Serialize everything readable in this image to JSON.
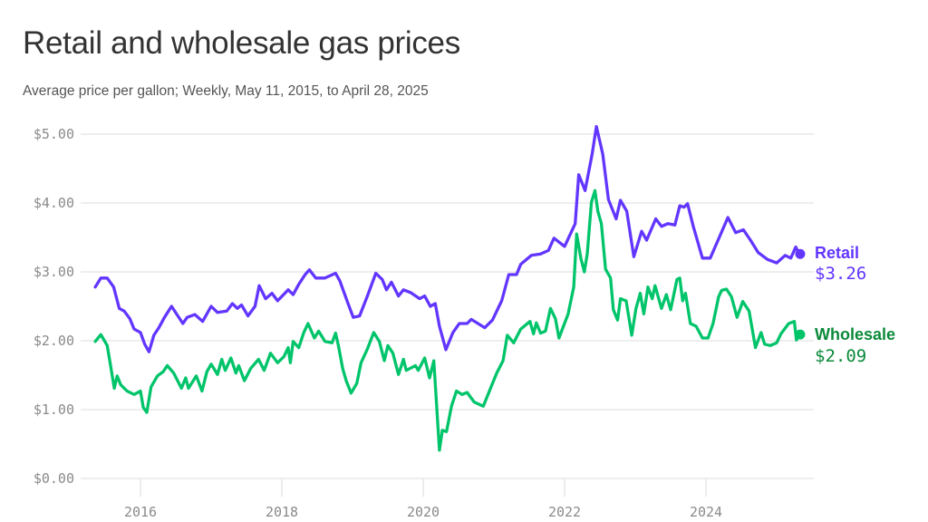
{
  "title": "Retail and wholesale gas prices",
  "subtitle": "Average price per gallon; Weekly, May 11, 2015, to April 28, 2025",
  "chart_data": {
    "type": "line",
    "title": "Retail and wholesale gas prices",
    "subtitle": "Average price per gallon; Weekly, May 11, 2015, to April 28, 2025",
    "x_unit": "year",
    "xlim": [
      2015.36,
      2025.32
    ],
    "ylim": [
      0,
      5
    ],
    "x_ticks": [
      2016,
      2018,
      2020,
      2022,
      2024
    ],
    "x_tick_labels": [
      "2016",
      "2018",
      "2020",
      "2022",
      "2024"
    ],
    "y_ticks": [
      0,
      1,
      2,
      3,
      4,
      5
    ],
    "y_tick_labels": [
      "$0.00",
      "$1.00",
      "$2.00",
      "$3.00",
      "$4.00",
      "$5.00"
    ],
    "grid": "horizontal",
    "legend": "direct labels at line ends (right)",
    "series": [
      {
        "name": "Retail",
        "end_label": "$3.26",
        "color": "#6236ff",
        "label_color": "#6236ff",
        "points": [
          [
            2015.36,
            2.78
          ],
          [
            2015.44,
            2.91
          ],
          [
            2015.53,
            2.91
          ],
          [
            2015.62,
            2.78
          ],
          [
            2015.7,
            2.47
          ],
          [
            2015.77,
            2.43
          ],
          [
            2015.85,
            2.32
          ],
          [
            2015.91,
            2.17
          ],
          [
            2016.0,
            2.12
          ],
          [
            2016.06,
            1.95
          ],
          [
            2016.12,
            1.84
          ],
          [
            2016.19,
            2.08
          ],
          [
            2016.26,
            2.19
          ],
          [
            2016.34,
            2.34
          ],
          [
            2016.44,
            2.5
          ],
          [
            2016.51,
            2.39
          ],
          [
            2016.6,
            2.25
          ],
          [
            2016.66,
            2.34
          ],
          [
            2016.77,
            2.38
          ],
          [
            2016.88,
            2.28
          ],
          [
            2017.0,
            2.5
          ],
          [
            2017.09,
            2.41
          ],
          [
            2017.22,
            2.43
          ],
          [
            2017.3,
            2.54
          ],
          [
            2017.37,
            2.47
          ],
          [
            2017.43,
            2.52
          ],
          [
            2017.52,
            2.36
          ],
          [
            2017.62,
            2.5
          ],
          [
            2017.68,
            2.8
          ],
          [
            2017.77,
            2.61
          ],
          [
            2017.86,
            2.69
          ],
          [
            2017.94,
            2.58
          ],
          [
            2018.09,
            2.74
          ],
          [
            2018.16,
            2.67
          ],
          [
            2018.24,
            2.82
          ],
          [
            2018.33,
            2.96
          ],
          [
            2018.39,
            3.03
          ],
          [
            2018.48,
            2.91
          ],
          [
            2018.61,
            2.91
          ],
          [
            2018.76,
            2.98
          ],
          [
            2018.82,
            2.87
          ],
          [
            2018.93,
            2.56
          ],
          [
            2019.01,
            2.34
          ],
          [
            2019.1,
            2.36
          ],
          [
            2019.21,
            2.65
          ],
          [
            2019.33,
            2.98
          ],
          [
            2019.42,
            2.89
          ],
          [
            2019.48,
            2.74
          ],
          [
            2019.55,
            2.85
          ],
          [
            2019.65,
            2.65
          ],
          [
            2019.72,
            2.74
          ],
          [
            2019.82,
            2.7
          ],
          [
            2019.95,
            2.61
          ],
          [
            2020.02,
            2.65
          ],
          [
            2020.1,
            2.5
          ],
          [
            2020.17,
            2.54
          ],
          [
            2020.23,
            2.21
          ],
          [
            2020.32,
            1.87
          ],
          [
            2020.42,
            2.12
          ],
          [
            2020.51,
            2.25
          ],
          [
            2020.62,
            2.25
          ],
          [
            2020.68,
            2.31
          ],
          [
            2020.87,
            2.19
          ],
          [
            2020.98,
            2.3
          ],
          [
            2021.11,
            2.58
          ],
          [
            2021.21,
            2.96
          ],
          [
            2021.32,
            2.96
          ],
          [
            2021.38,
            3.11
          ],
          [
            2021.53,
            3.24
          ],
          [
            2021.66,
            3.26
          ],
          [
            2021.77,
            3.31
          ],
          [
            2021.85,
            3.49
          ],
          [
            2022.0,
            3.37
          ],
          [
            2022.15,
            3.7
          ],
          [
            2022.2,
            4.41
          ],
          [
            2022.29,
            4.18
          ],
          [
            2022.39,
            4.71
          ],
          [
            2022.45,
            5.11
          ],
          [
            2022.54,
            4.71
          ],
          [
            2022.62,
            4.05
          ],
          [
            2022.73,
            3.77
          ],
          [
            2022.79,
            4.04
          ],
          [
            2022.88,
            3.88
          ],
          [
            2022.98,
            3.22
          ],
          [
            2023.09,
            3.59
          ],
          [
            2023.16,
            3.46
          ],
          [
            2023.29,
            3.77
          ],
          [
            2023.37,
            3.66
          ],
          [
            2023.46,
            3.7
          ],
          [
            2023.56,
            3.68
          ],
          [
            2023.63,
            3.96
          ],
          [
            2023.69,
            3.94
          ],
          [
            2023.74,
            3.99
          ],
          [
            2023.82,
            3.66
          ],
          [
            2023.95,
            3.2
          ],
          [
            2024.06,
            3.2
          ],
          [
            2024.18,
            3.48
          ],
          [
            2024.31,
            3.79
          ],
          [
            2024.42,
            3.57
          ],
          [
            2024.53,
            3.61
          ],
          [
            2024.63,
            3.46
          ],
          [
            2024.74,
            3.28
          ],
          [
            2024.87,
            3.18
          ],
          [
            2025.0,
            3.13
          ],
          [
            2025.12,
            3.24
          ],
          [
            2025.2,
            3.2
          ],
          [
            2025.27,
            3.36
          ],
          [
            2025.32,
            3.26
          ]
        ]
      },
      {
        "name": "Wholesale",
        "end_label": "$2.09",
        "color": "#00c46a",
        "label_color": "#0b8a3a",
        "points": [
          [
            2015.36,
            1.99
          ],
          [
            2015.44,
            2.09
          ],
          [
            2015.53,
            1.93
          ],
          [
            2015.57,
            1.68
          ],
          [
            2015.63,
            1.31
          ],
          [
            2015.67,
            1.49
          ],
          [
            2015.72,
            1.36
          ],
          [
            2015.81,
            1.27
          ],
          [
            2015.91,
            1.22
          ],
          [
            2016.0,
            1.27
          ],
          [
            2016.04,
            1.03
          ],
          [
            2016.09,
            0.96
          ],
          [
            2016.15,
            1.33
          ],
          [
            2016.24,
            1.49
          ],
          [
            2016.32,
            1.55
          ],
          [
            2016.38,
            1.64
          ],
          [
            2016.47,
            1.53
          ],
          [
            2016.58,
            1.31
          ],
          [
            2016.64,
            1.46
          ],
          [
            2016.68,
            1.31
          ],
          [
            2016.79,
            1.49
          ],
          [
            2016.87,
            1.27
          ],
          [
            2016.94,
            1.55
          ],
          [
            2017.0,
            1.66
          ],
          [
            2017.09,
            1.51
          ],
          [
            2017.15,
            1.73
          ],
          [
            2017.2,
            1.57
          ],
          [
            2017.28,
            1.75
          ],
          [
            2017.35,
            1.53
          ],
          [
            2017.39,
            1.64
          ],
          [
            2017.47,
            1.42
          ],
          [
            2017.56,
            1.6
          ],
          [
            2017.67,
            1.73
          ],
          [
            2017.75,
            1.57
          ],
          [
            2017.84,
            1.82
          ],
          [
            2017.94,
            1.68
          ],
          [
            2018.03,
            1.77
          ],
          [
            2018.09,
            1.9
          ],
          [
            2018.12,
            1.68
          ],
          [
            2018.16,
            1.99
          ],
          [
            2018.24,
            1.9
          ],
          [
            2018.31,
            2.12
          ],
          [
            2018.37,
            2.25
          ],
          [
            2018.46,
            2.04
          ],
          [
            2018.52,
            2.14
          ],
          [
            2018.61,
            1.99
          ],
          [
            2018.71,
            1.97
          ],
          [
            2018.76,
            2.11
          ],
          [
            2018.8,
            1.93
          ],
          [
            2018.86,
            1.6
          ],
          [
            2018.91,
            1.42
          ],
          [
            2018.98,
            1.24
          ],
          [
            2019.06,
            1.38
          ],
          [
            2019.12,
            1.68
          ],
          [
            2019.21,
            1.88
          ],
          [
            2019.3,
            2.12
          ],
          [
            2019.38,
            1.99
          ],
          [
            2019.45,
            1.71
          ],
          [
            2019.5,
            1.93
          ],
          [
            2019.57,
            1.82
          ],
          [
            2019.65,
            1.51
          ],
          [
            2019.72,
            1.73
          ],
          [
            2019.76,
            1.57
          ],
          [
            2019.89,
            1.64
          ],
          [
            2019.93,
            1.57
          ],
          [
            2020.02,
            1.75
          ],
          [
            2020.09,
            1.46
          ],
          [
            2020.15,
            1.71
          ],
          [
            2020.23,
            0.41
          ],
          [
            2020.27,
            0.7
          ],
          [
            2020.33,
            0.68
          ],
          [
            2020.4,
            1.05
          ],
          [
            2020.47,
            1.27
          ],
          [
            2020.55,
            1.22
          ],
          [
            2020.62,
            1.25
          ],
          [
            2020.72,
            1.11
          ],
          [
            2020.85,
            1.05
          ],
          [
            2020.96,
            1.33
          ],
          [
            2021.04,
            1.53
          ],
          [
            2021.13,
            1.71
          ],
          [
            2021.19,
            2.08
          ],
          [
            2021.28,
            1.97
          ],
          [
            2021.38,
            2.17
          ],
          [
            2021.51,
            2.28
          ],
          [
            2021.56,
            2.1
          ],
          [
            2021.6,
            2.26
          ],
          [
            2021.66,
            2.11
          ],
          [
            2021.73,
            2.14
          ],
          [
            2021.8,
            2.47
          ],
          [
            2021.87,
            2.32
          ],
          [
            2021.92,
            2.04
          ],
          [
            2022.05,
            2.39
          ],
          [
            2022.13,
            2.78
          ],
          [
            2022.17,
            3.55
          ],
          [
            2022.23,
            3.2
          ],
          [
            2022.28,
            3.0
          ],
          [
            2022.32,
            3.26
          ],
          [
            2022.38,
            4.01
          ],
          [
            2022.43,
            4.18
          ],
          [
            2022.47,
            3.88
          ],
          [
            2022.52,
            3.7
          ],
          [
            2022.58,
            3.04
          ],
          [
            2022.65,
            2.91
          ],
          [
            2022.69,
            2.45
          ],
          [
            2022.75,
            2.3
          ],
          [
            2022.79,
            2.61
          ],
          [
            2022.87,
            2.58
          ],
          [
            2022.95,
            2.08
          ],
          [
            2023.01,
            2.47
          ],
          [
            2023.07,
            2.69
          ],
          [
            2023.12,
            2.39
          ],
          [
            2023.18,
            2.78
          ],
          [
            2023.24,
            2.61
          ],
          [
            2023.28,
            2.8
          ],
          [
            2023.37,
            2.47
          ],
          [
            2023.44,
            2.67
          ],
          [
            2023.5,
            2.45
          ],
          [
            2023.59,
            2.89
          ],
          [
            2023.63,
            2.91
          ],
          [
            2023.67,
            2.58
          ],
          [
            2023.71,
            2.69
          ],
          [
            2023.78,
            2.25
          ],
          [
            2023.86,
            2.21
          ],
          [
            2023.95,
            2.04
          ],
          [
            2024.03,
            2.04
          ],
          [
            2024.1,
            2.25
          ],
          [
            2024.18,
            2.64
          ],
          [
            2024.22,
            2.73
          ],
          [
            2024.29,
            2.75
          ],
          [
            2024.36,
            2.64
          ],
          [
            2024.44,
            2.34
          ],
          [
            2024.52,
            2.57
          ],
          [
            2024.61,
            2.43
          ],
          [
            2024.7,
            1.9
          ],
          [
            2024.78,
            2.12
          ],
          [
            2024.83,
            1.95
          ],
          [
            2024.91,
            1.93
          ],
          [
            2025.0,
            1.97
          ],
          [
            2025.06,
            2.1
          ],
          [
            2025.17,
            2.25
          ],
          [
            2025.25,
            2.28
          ],
          [
            2025.28,
            2.01
          ],
          [
            2025.32,
            2.09
          ]
        ]
      }
    ]
  }
}
